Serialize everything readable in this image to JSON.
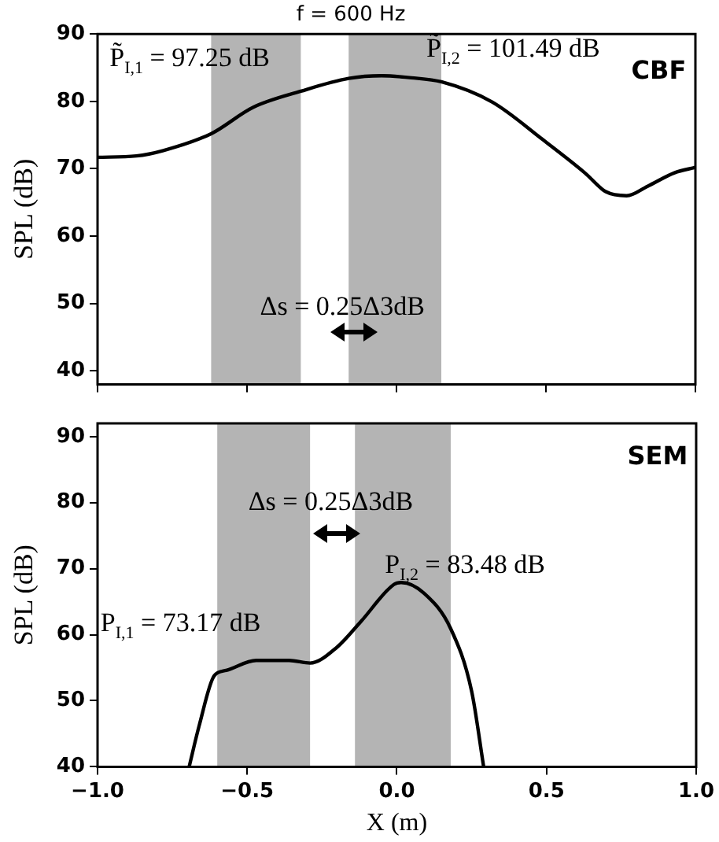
{
  "chart_data": [
    {
      "type": "line",
      "title": "f = 600 Hz",
      "ylabel": "SPL (dB)",
      "x": [
        -1,
        -0.87,
        -0.78,
        -0.62,
        -0.48,
        -0.32,
        -0.16,
        -0.05,
        0.05,
        0.15,
        0.32,
        0.49,
        0.63,
        0.7,
        0.77,
        0.84,
        0.93,
        1
      ],
      "series": [
        {
          "color": "#000000",
          "values": [
            71.7,
            71.9,
            72.7,
            75.2,
            79.1,
            81.5,
            83.4,
            83.8,
            83.5,
            82.9,
            79.9,
            74.3,
            69.4,
            66.6,
            66.0,
            67.4,
            69.4,
            70.2
          ]
        }
      ],
      "xlim": [
        -1,
        1
      ],
      "xticks": [
        -1,
        -0.5,
        0,
        0.5,
        1
      ],
      "ylim": [
        38,
        90
      ],
      "yticks": [
        40,
        50,
        60,
        70,
        80,
        90
      ],
      "tick_labels": "y",
      "bands": [
        {
          "axis": "x",
          "from": -0.62,
          "to": -0.32,
          "color": "#b4b4b4"
        },
        {
          "axis": "x",
          "from": -0.16,
          "to": 0.15,
          "color": "#b4b4b4"
        }
      ],
      "annotations": [
        "P̃$_{I,1}$ = 97.25 dB",
        "P̃$_{I,2}$ = 101.49 dB",
        "CBF",
        "Δs = 0.25Δ3dB"
      ],
      "marker": "none",
      "line_style": "solid",
      "grid": false,
      "legend": false
    },
    {
      "type": "line",
      "xlabel": "X (m)",
      "ylabel": "SPL (dB)",
      "x": [
        -0.694,
        -0.66,
        -0.61,
        -0.57,
        -0.47,
        -0.36,
        -0.29,
        -0.2,
        -0.12,
        -0.01,
        0.015,
        0.09,
        0.18,
        0.25,
        0.29
      ],
      "series": [
        {
          "color": "#000000",
          "values": [
            40,
            46.3,
            53.8,
            54.6,
            56.1,
            56.1,
            55.7,
            58.1,
            62.0,
            67.6,
            67.9,
            66.3,
            60.9,
            51.4,
            40
          ]
        }
      ],
      "xlim": [
        -1,
        1
      ],
      "xticks": [
        {
          "value": -1,
          "label": "−1.0"
        },
        {
          "value": -0.5,
          "label": "−0.5"
        },
        {
          "value": 0,
          "label": "0.0"
        },
        {
          "value": 0.5,
          "label": "0.5"
        },
        {
          "value": 1,
          "label": "1.0"
        }
      ],
      "ylim": [
        40,
        92
      ],
      "yticks": [
        40,
        50,
        60,
        70,
        80,
        90
      ],
      "bands": [
        {
          "axis": "x",
          "from": -0.6,
          "to": -0.29,
          "color": "#b4b4b4"
        },
        {
          "axis": "x",
          "from": -0.14,
          "to": 0.18,
          "color": "#b4b4b4"
        }
      ],
      "annotations": [
        "SEM",
        "Δs = 0.25Δ3dB",
        "P$_{I,2}$ = 83.48 dB",
        "P$_{I,1}$ = 73.17 dB"
      ],
      "marker": "none",
      "line_style": "solid",
      "grid": false,
      "legend": false
    }
  ]
}
